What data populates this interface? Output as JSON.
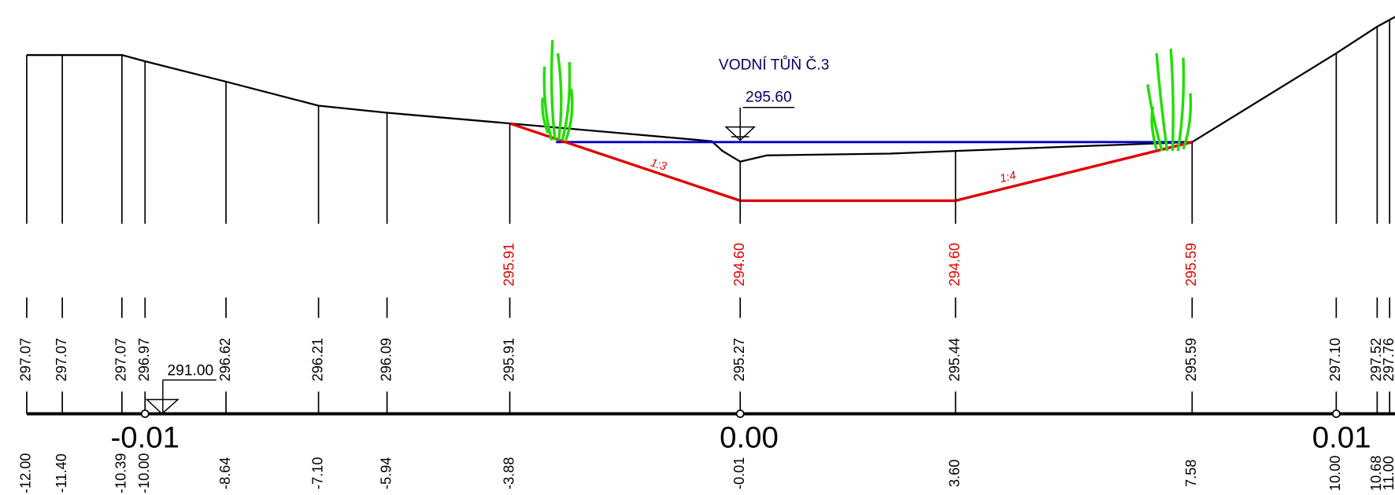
{
  "title": "VODNÍ TŮŇ Č.3",
  "water_level": "295.60",
  "reference_level": "291.00",
  "slopes": [
    "1:3",
    "1:4"
  ],
  "design_elevations": [
    "295.91",
    "294.60",
    "294.60",
    "295.59"
  ],
  "terrain_elevations": [
    "297.07",
    "297.07",
    "297.07",
    "296.97",
    "296.62",
    "296.21",
    "296.09",
    "295.91",
    "295.27",
    "295.44",
    "295.59",
    "297.10",
    "297.52",
    "297.76"
  ],
  "stations": [
    "-12.00",
    "-11.40",
    "-10.39",
    "-10.00",
    "-8.64",
    "-7.10",
    "-5.94",
    "-3.88",
    "-0.01",
    "3.60",
    "7.58",
    "10.00",
    "10.68",
    "11.00"
  ],
  "axis_labels": [
    "-0.01",
    "0.00",
    "0.01"
  ]
}
